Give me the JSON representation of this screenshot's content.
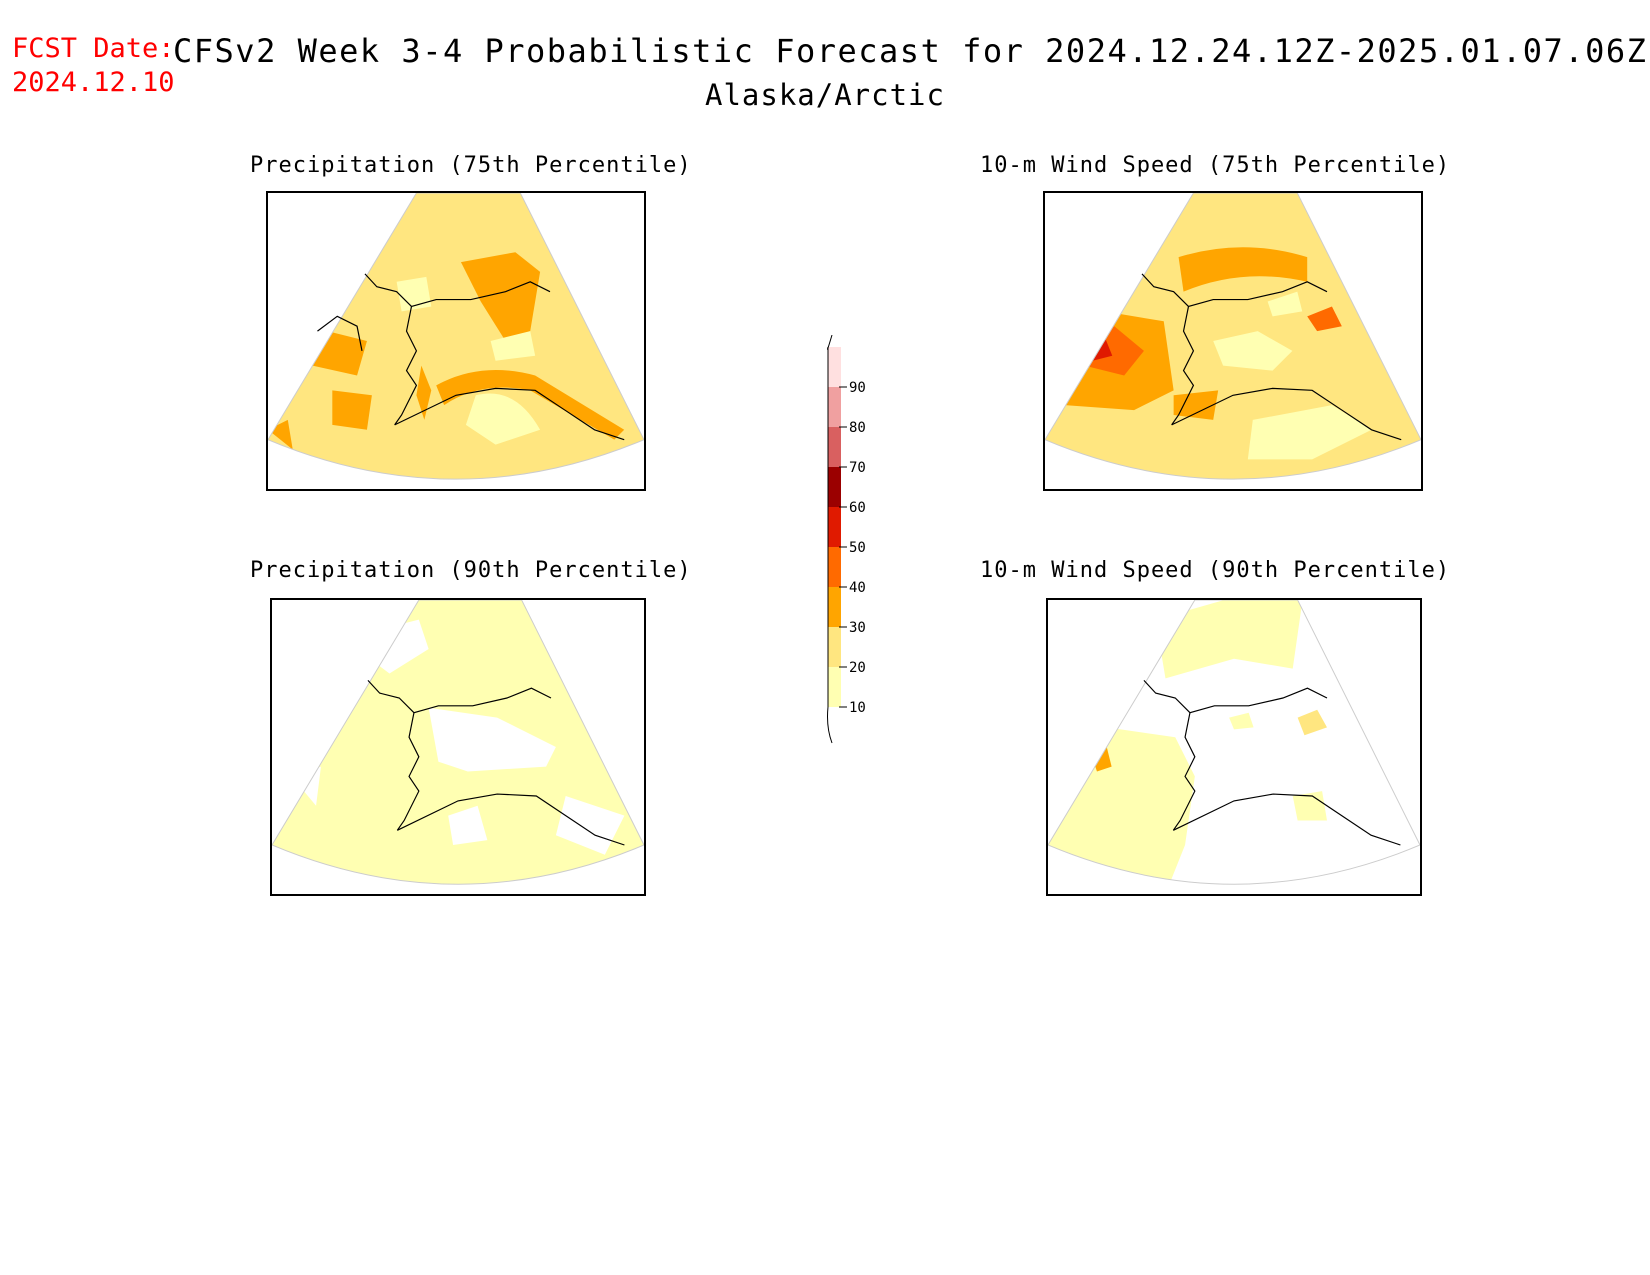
{
  "header": {
    "fcst_label": "FCST Date:",
    "fcst_date": "2024.12.10",
    "title": "CFSv2 Week 3-4 Probabilistic Forecast for 2024.12.24.12Z-2025.01.07.06Z",
    "region": "Alaska/Arctic"
  },
  "panels": [
    {
      "title": "Precipitation (75th Percentile)"
    },
    {
      "title": "10-m Wind Speed (75th Percentile)"
    },
    {
      "title": "Precipitation (90th Percentile)"
    },
    {
      "title": "10-m Wind Speed (90th Percentile)"
    }
  ],
  "colorbar": {
    "levels": [
      "10",
      "20",
      "30",
      "40",
      "50",
      "60",
      "70",
      "80",
      "90"
    ],
    "colors": [
      "#ffffb2",
      "#ffe680",
      "#ffa500",
      "#ff6a00",
      "#e01a00",
      "#9b0000",
      "#d96060",
      "#f0a0a0",
      "#ffe0e0"
    ]
  },
  "map_colors": {
    "light": "#ffffb2",
    "yellow": "#ffe680",
    "orange": "#ffa500",
    "dark_orange": "#ff6a00",
    "red": "#e01a00"
  }
}
